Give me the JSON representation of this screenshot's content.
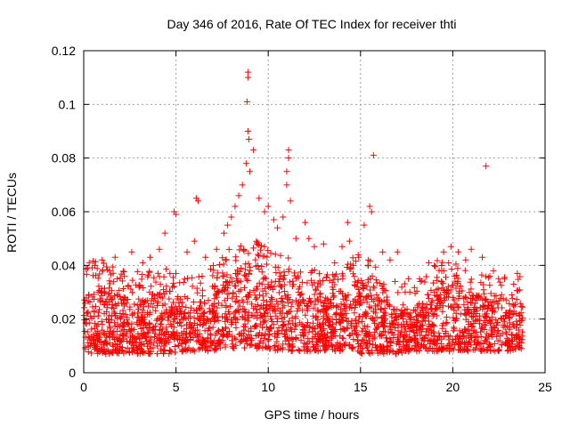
{
  "chart_data": {
    "type": "scatter",
    "title": "Day 346 of 2016, Rate Of TEC Index for receiver thti",
    "xlabel": "GPS time / hours",
    "ylabel": "ROTI / TECUs",
    "xlim": [
      0,
      25
    ],
    "ylim": [
      0,
      0.12
    ],
    "xticks": [
      0,
      5,
      10,
      15,
      20,
      25
    ],
    "xtick_labels": [
      "0",
      "5",
      "10",
      "15",
      "20",
      "25"
    ],
    "yticks": [
      0,
      0.02,
      0.04,
      0.06,
      0.08,
      0.1,
      0.12
    ],
    "ytick_labels": [
      "0",
      "0.02",
      "0.04",
      "0.06",
      "0.08",
      "0.1",
      "0.12"
    ],
    "grid": true,
    "marker": "+",
    "color": "#ff0000",
    "series": [
      {
        "name": "ROTI",
        "points": [
          [
            0.3,
            0.041
          ],
          [
            0.6,
            0.04
          ],
          [
            1.0,
            0.042
          ],
          [
            1.4,
            0.038
          ],
          [
            1.7,
            0.043
          ],
          [
            2.2,
            0.036
          ],
          [
            2.6,
            0.045
          ],
          [
            3.2,
            0.041
          ],
          [
            3.6,
            0.043
          ],
          [
            4.1,
            0.046
          ],
          [
            4.4,
            0.052
          ],
          [
            4.9,
            0.06
          ],
          [
            5.0,
            0.059
          ],
          [
            5.6,
            0.045
          ],
          [
            6.0,
            0.049
          ],
          [
            6.1,
            0.065
          ],
          [
            6.2,
            0.064
          ],
          [
            6.6,
            0.043
          ],
          [
            7.2,
            0.046
          ],
          [
            7.6,
            0.052
          ],
          [
            7.8,
            0.055
          ],
          [
            8.0,
            0.058
          ],
          [
            8.2,
            0.062
          ],
          [
            8.4,
            0.066
          ],
          [
            8.6,
            0.07
          ],
          [
            8.8,
            0.078
          ],
          [
            8.9,
            0.09
          ],
          [
            8.85,
            0.101
          ],
          [
            8.9,
            0.11
          ],
          [
            8.9,
            0.112
          ],
          [
            8.95,
            0.087
          ],
          [
            9.2,
            0.083
          ],
          [
            9.0,
            0.075
          ],
          [
            9.5,
            0.065
          ],
          [
            9.8,
            0.06
          ],
          [
            10.0,
            0.062
          ],
          [
            10.3,
            0.057
          ],
          [
            10.5,
            0.054
          ],
          [
            10.8,
            0.058
          ],
          [
            11.0,
            0.07
          ],
          [
            11.0,
            0.075
          ],
          [
            11.1,
            0.08
          ],
          [
            11.1,
            0.083
          ],
          [
            11.2,
            0.064
          ],
          [
            11.5,
            0.05
          ],
          [
            12.0,
            0.056
          ],
          [
            12.2,
            0.05
          ],
          [
            12.5,
            0.047
          ],
          [
            13.0,
            0.048
          ],
          [
            13.6,
            0.041
          ],
          [
            14.0,
            0.047
          ],
          [
            14.3,
            0.056
          ],
          [
            14.4,
            0.049
          ],
          [
            14.9,
            0.043
          ],
          [
            15.2,
            0.055
          ],
          [
            15.5,
            0.062
          ],
          [
            15.6,
            0.06
          ],
          [
            15.7,
            0.081
          ],
          [
            16.2,
            0.045
          ],
          [
            16.6,
            0.042
          ],
          [
            17.0,
            0.045
          ],
          [
            17.6,
            0.035
          ],
          [
            18.2,
            0.035
          ],
          [
            18.7,
            0.041
          ],
          [
            19.0,
            0.04
          ],
          [
            19.5,
            0.045
          ],
          [
            19.9,
            0.047
          ],
          [
            20.3,
            0.045
          ],
          [
            20.7,
            0.042
          ],
          [
            21.0,
            0.046
          ],
          [
            21.6,
            0.043
          ],
          [
            21.8,
            0.077
          ],
          [
            22.2,
            0.038
          ],
          [
            22.8,
            0.035
          ],
          [
            23.3,
            0.033
          ],
          [
            23.5,
            0.037
          ]
        ]
      }
    ],
    "density_profile": {
      "x": [
        0,
        0.5,
        1,
        2,
        3,
        4,
        5,
        5.5,
        6,
        6.5,
        7,
        7.5,
        8,
        8.5,
        9,
        9.5,
        10,
        10.5,
        11,
        11.5,
        12,
        13,
        14,
        14.5,
        15,
        15.5,
        16,
        17,
        18,
        18.5,
        19,
        20,
        21,
        22,
        23,
        23.8
      ],
      "lower": [
        0.008,
        0.007,
        0.007,
        0.007,
        0.007,
        0.007,
        0.007,
        0.008,
        0.008,
        0.008,
        0.008,
        0.009,
        0.009,
        0.009,
        0.009,
        0.009,
        0.009,
        0.008,
        0.008,
        0.008,
        0.008,
        0.008,
        0.008,
        0.008,
        0.007,
        0.007,
        0.007,
        0.007,
        0.008,
        0.008,
        0.008,
        0.008,
        0.008,
        0.008,
        0.008,
        0.009
      ],
      "upper": [
        0.03,
        0.032,
        0.031,
        0.029,
        0.028,
        0.03,
        0.028,
        0.025,
        0.027,
        0.026,
        0.03,
        0.034,
        0.037,
        0.04,
        0.042,
        0.04,
        0.037,
        0.035,
        0.036,
        0.031,
        0.03,
        0.027,
        0.028,
        0.033,
        0.035,
        0.033,
        0.028,
        0.024,
        0.023,
        0.028,
        0.032,
        0.031,
        0.03,
        0.027,
        0.026,
        0.027
      ]
    }
  }
}
